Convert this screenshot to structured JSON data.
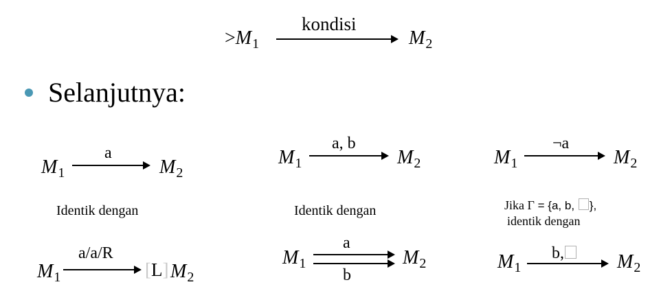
{
  "top": {
    "prefix": ">",
    "from": "M",
    "from_sub": "1",
    "label": "kondisi",
    "to": "M",
    "to_sub": "2"
  },
  "heading": "Selanjutnya:",
  "col1": {
    "upper": {
      "from": "M",
      "from_sub": "1",
      "label": "a",
      "to": "M",
      "to_sub": "2"
    },
    "caption": "Identik dengan",
    "lower": {
      "from": "M",
      "from_sub": "1",
      "label": "a/a/R",
      "bracket_open": "[",
      "bracket_letter": "L",
      "bracket_close": "]",
      "to": "M",
      "to_sub": "2"
    }
  },
  "col2": {
    "upper": {
      "from": "M",
      "from_sub": "1",
      "label": "a, b",
      "to": "M",
      "to_sub": "2"
    },
    "caption": "Identik dengan",
    "lower": {
      "from": "M",
      "from_sub": "1",
      "label_top": "a",
      "label_bottom": "b",
      "to": "M",
      "to_sub": "2"
    }
  },
  "col3": {
    "upper": {
      "from": "M",
      "from_sub": "1",
      "label": "¬a",
      "to": "M",
      "to_sub": "2"
    },
    "caption_line1_prefix": "Jika ",
    "caption_gamma": "Γ",
    "caption_set": " = {a, b, ",
    "caption_set_close": "},",
    "caption_line2": "identik dengan",
    "lower": {
      "from": "M",
      "from_sub": "1",
      "label": "b,",
      "to": "M",
      "to_sub": "2"
    }
  },
  "colors": {
    "bullet": "#4a98b4",
    "blank_border": "#b0b0b0",
    "bracket": "#c8c8c8"
  }
}
